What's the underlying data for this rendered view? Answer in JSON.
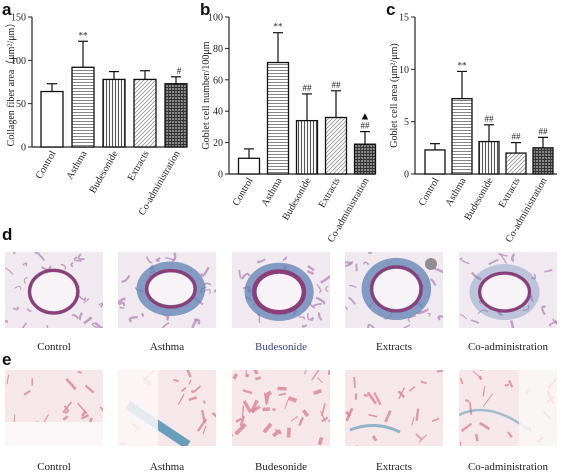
{
  "panels": {
    "a": "a",
    "b": "b",
    "c": "c",
    "d": "d",
    "e": "e"
  },
  "chart_data": [
    {
      "type": "bar",
      "panel": "a",
      "categories": [
        "Control",
        "Asthma",
        "Budesonide",
        "Extracts",
        "Co-administration"
      ],
      "values": [
        64,
        92,
        78,
        78,
        73
      ],
      "errors": [
        9,
        30,
        9,
        10,
        8
      ],
      "annotations": [
        "",
        "**",
        "",
        "",
        "#"
      ],
      "ylabel": "Collagen fiber area（μm²/μm）",
      "ylim": [
        0,
        150
      ],
      "yticks": [
        0,
        50,
        100,
        150
      ]
    },
    {
      "type": "bar",
      "panel": "b",
      "categories": [
        "Control",
        "Asthma",
        "Budesonide",
        "Extracts",
        "Co-administration"
      ],
      "values": [
        10,
        71,
        34,
        36,
        19
      ],
      "errors": [
        6,
        19,
        17,
        17,
        8
      ],
      "annotations": [
        "",
        "**",
        "##",
        "##",
        "##"
      ],
      "extra_marker": "▲",
      "ylabel": "Goblet cell number/100μm",
      "ylim": [
        0,
        100
      ],
      "yticks": [
        0,
        20,
        40,
        60,
        80,
        100
      ]
    },
    {
      "type": "bar",
      "panel": "c",
      "categories": [
        "Control",
        "Asthma",
        "Budesonide",
        "Extracts",
        "Co-administration"
      ],
      "values": [
        2.3,
        7.2,
        3.1,
        2.0,
        2.5
      ],
      "errors": [
        0.6,
        2.6,
        1.6,
        1.0,
        1.0
      ],
      "annotations": [
        "",
        "**",
        "##",
        "##",
        "##"
      ],
      "ylabel": "Goblet cell area (μm²/μm)",
      "ylim": [
        0,
        15
      ],
      "yticks": [
        0,
        5,
        10,
        15
      ]
    }
  ],
  "micrographs": {
    "d": [
      "Control",
      "Asthma",
      "Budesonide",
      "Extracts",
      "Co-administration"
    ],
    "e": [
      "Control",
      "Asthma",
      "Budesonide",
      "Extracts",
      "Co-administration"
    ]
  },
  "colors": {
    "axis": "#222222",
    "stain_d_background": "#f1e9f0",
    "stain_d_tissue": "#b58bb8",
    "stain_d_collagen": "#5d7fb3",
    "stain_d_epithelium": "#8a3f79",
    "stain_e_background": "#f6e8ea",
    "stain_e_tissue": "#d98a9a",
    "stain_e_mucus": "#4f90b0",
    "budesonide_caption": "#3d3d8f"
  }
}
